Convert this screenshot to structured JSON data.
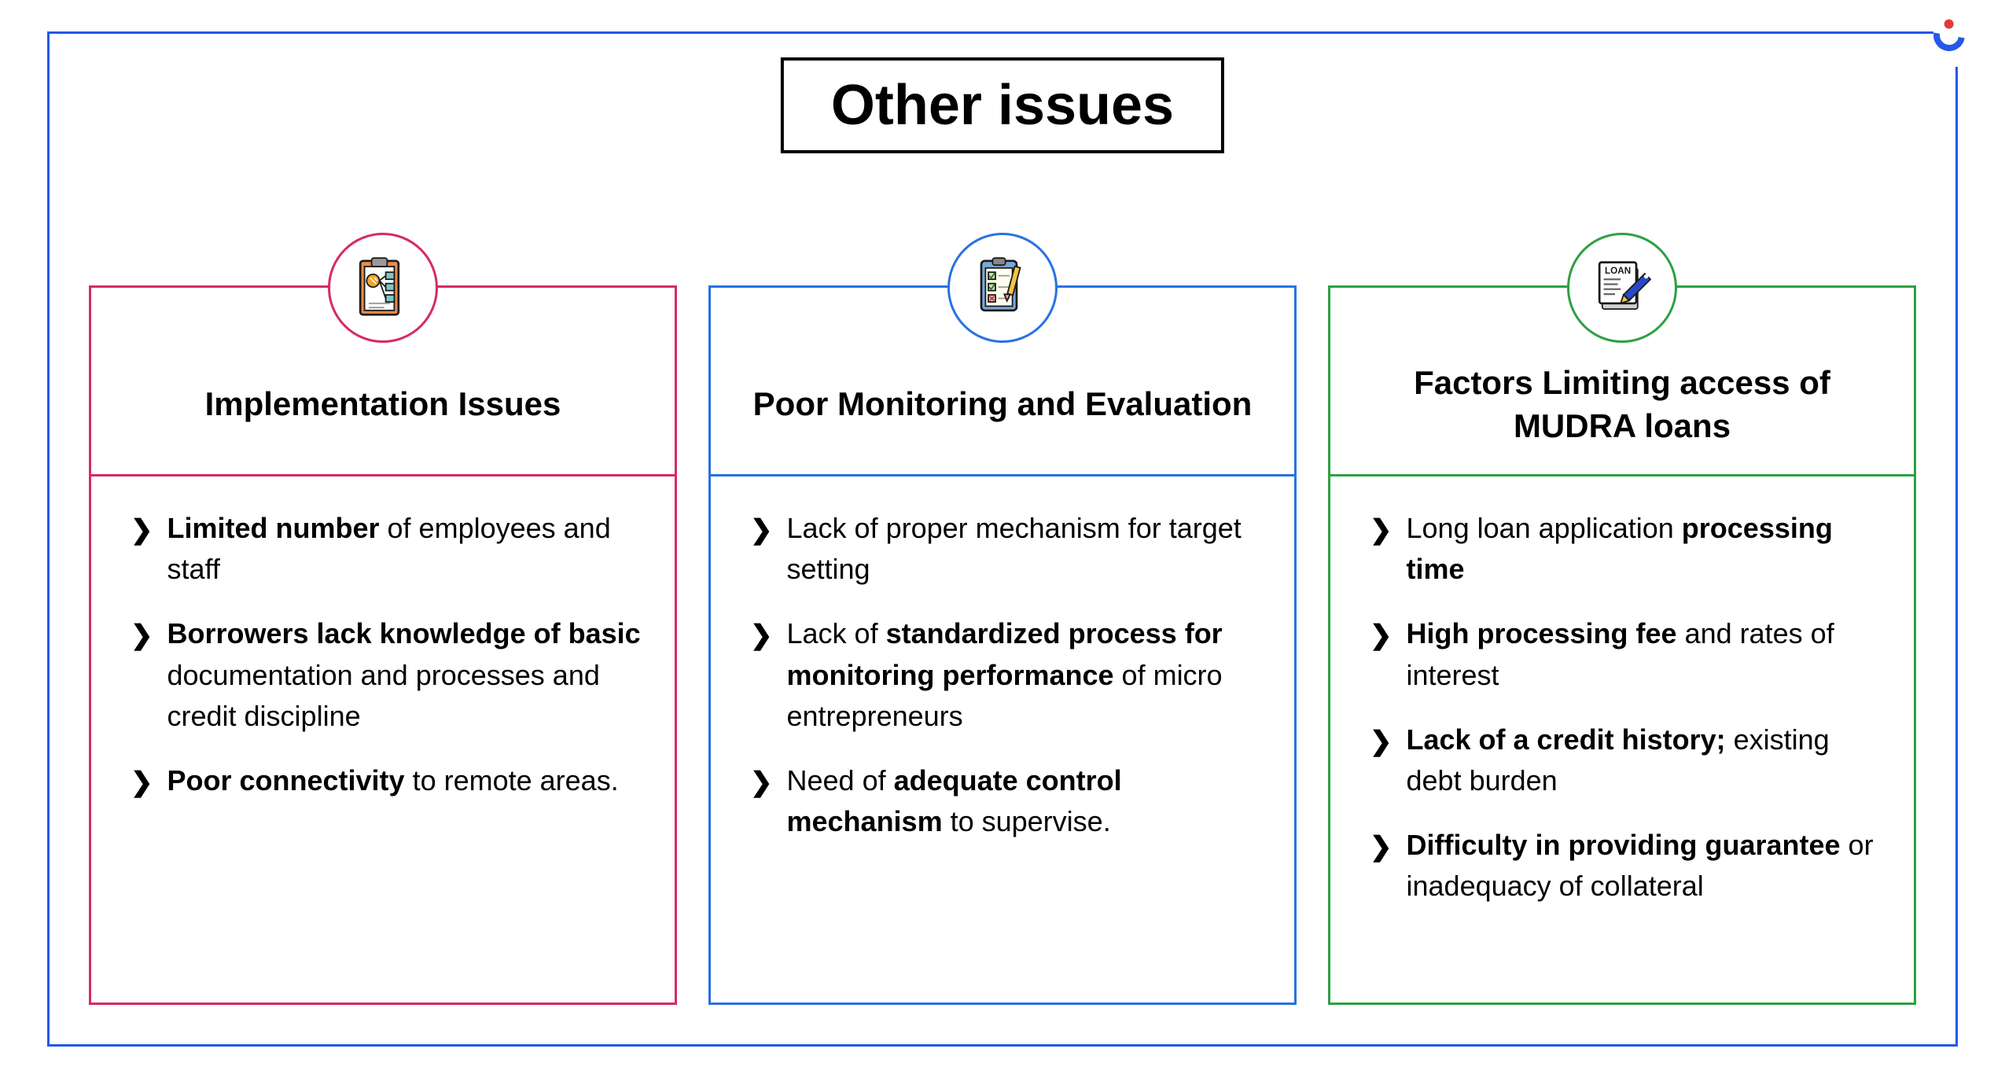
{
  "main_title": "Other issues",
  "outer_border_color": "#2458e8",
  "title_border_color": "#000000",
  "cards": [
    {
      "border_color": "#d6296a",
      "title": "Implementation Issues",
      "icon": "clipboard-flow",
      "bullets": [
        {
          "segments": [
            {
              "t": "Limited number",
              "b": true
            },
            {
              "t": " of employees and staff",
              "b": false
            }
          ]
        },
        {
          "segments": [
            {
              "t": "Borrowers lack knowledge of basic",
              "b": true
            },
            {
              "t": " documentation and processes and credit discipline",
              "b": false
            }
          ]
        },
        {
          "segments": [
            {
              "t": "Poor connectivity",
              "b": true
            },
            {
              "t": " to remote areas.",
              "b": false
            }
          ]
        }
      ]
    },
    {
      "border_color": "#2872e3",
      "title": "Poor Monitoring and Evaluation",
      "icon": "checklist-pencil",
      "bullets": [
        {
          "segments": [
            {
              "t": "Lack of proper mechanism for target setting",
              "b": false
            }
          ]
        },
        {
          "segments": [
            {
              "t": "Lack of ",
              "b": false
            },
            {
              "t": "standardized process for monitoring performance",
              "b": true
            },
            {
              "t": " of micro entrepreneurs",
              "b": false
            }
          ]
        },
        {
          "segments": [
            {
              "t": "Need of ",
              "b": false
            },
            {
              "t": "adequate control mechanism",
              "b": true
            },
            {
              "t": " to supervise.",
              "b": false
            }
          ]
        }
      ]
    },
    {
      "border_color": "#2ea043",
      "title": "Factors Limiting access of MUDRA loans",
      "icon": "loan-doc",
      "bullets": [
        {
          "segments": [
            {
              "t": "Long loan application ",
              "b": false
            },
            {
              "t": "processing time",
              "b": true
            }
          ]
        },
        {
          "segments": [
            {
              "t": "High processing fee",
              "b": true
            },
            {
              "t": " and rates of interest",
              "b": false
            }
          ]
        },
        {
          "segments": [
            {
              "t": "Lack of a credit history;",
              "b": true
            },
            {
              "t": " existing debt burden",
              "b": false
            }
          ]
        },
        {
          "segments": [
            {
              "t": "Difficulty in providing guarantee",
              "b": true
            },
            {
              "t": " or inadequacy of collateral",
              "b": false
            }
          ]
        }
      ]
    }
  ]
}
